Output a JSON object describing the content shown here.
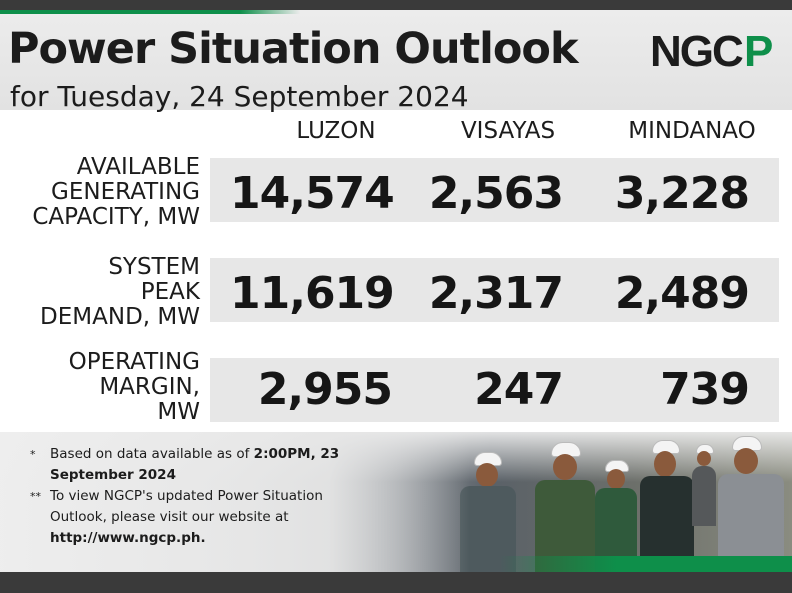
{
  "header": {
    "title": "Power Situation Outlook",
    "subtitle": "for Tuesday, 24 September 2024",
    "logo_text": "NGCP"
  },
  "columns": [
    "LUZON",
    "VISAYAS",
    "MINDANAO"
  ],
  "rows": [
    {
      "label": "AVAILABLE\nGENERATING\nCAPACITY, MW",
      "values": [
        "14,574",
        "2,563",
        "3,228"
      ]
    },
    {
      "label": "SYSTEM\nPEAK\nDEMAND, MW",
      "values": [
        "11,619",
        "2,317",
        "2,489"
      ]
    },
    {
      "label": "OPERATING\nMARGIN,\nMW",
      "values": [
        "2,955",
        "247",
        "739"
      ]
    }
  ],
  "notes": {
    "note1_mark": "*",
    "note1_text": "Based on data available as of ",
    "note1_bold": "2:00PM, 23 September 2024",
    "note2_mark": "**",
    "note2_text": "To view NGCP's updated Power Situation Outlook, please visit our website at ",
    "note2_bold": "http://www.ngcp.ph."
  },
  "colors": {
    "brand_green": "#0e8f4a",
    "dark_bar": "#3a3a3a",
    "band_gray": "#e7e7e7"
  }
}
